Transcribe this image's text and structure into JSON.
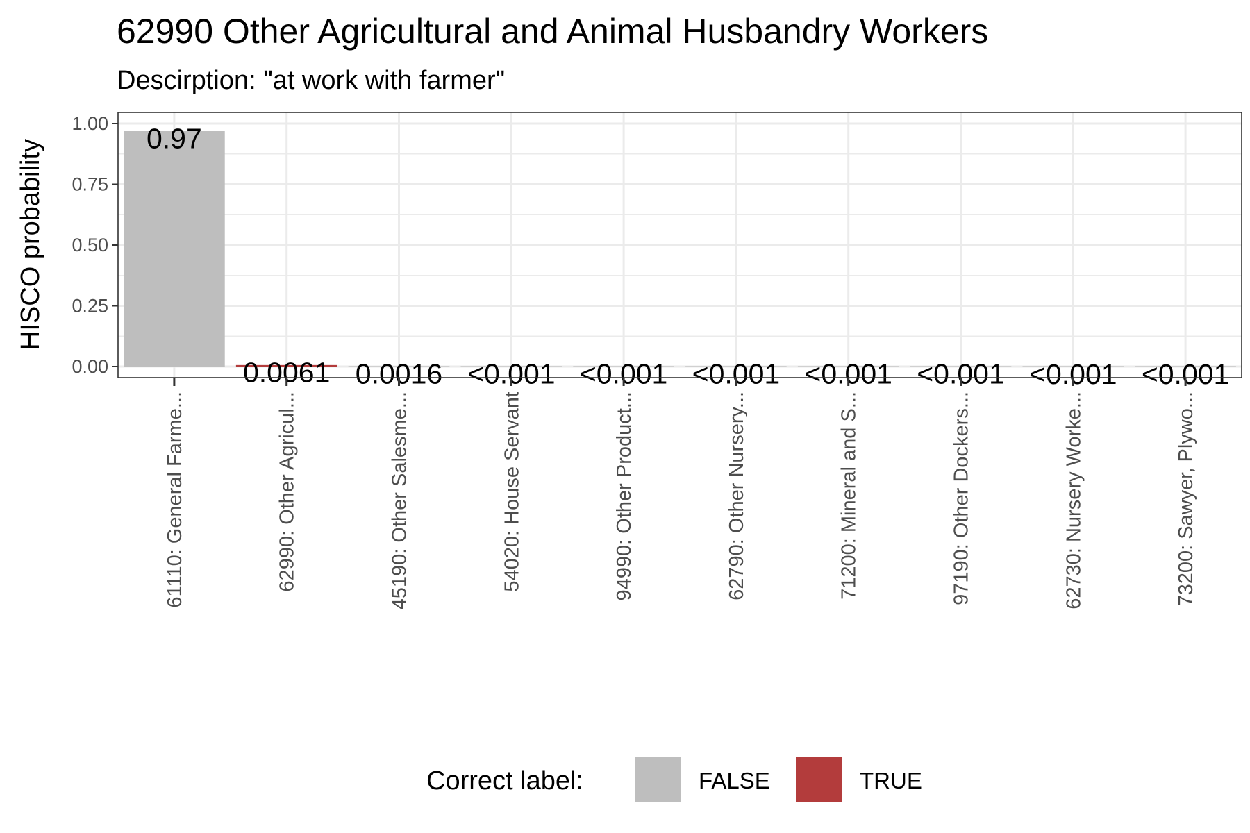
{
  "chart_data": {
    "type": "bar",
    "title": "62990 Other Agricultural and Animal Husbandry Workers",
    "subtitle": "Descirption: \"at work with farmer\"",
    "xlabel": "",
    "ylabel": "HISCO probability",
    "ylim": [
      0,
      1.05
    ],
    "yticks": [
      "0.00",
      "0.25",
      "0.50",
      "0.75",
      "1.00"
    ],
    "categories": [
      "61110: General Farme...",
      "62990: Other Agricul...",
      "45190: Other Salesme...",
      "54020: House Servant",
      "94990: Other Product...",
      "62790: Other Nursery...",
      "71200: Mineral and S...",
      "97190: Other Dockers...",
      "62730: Nursery Worke...",
      "73200: Sawyer, Plywo..."
    ],
    "values": [
      0.97,
      0.0061,
      0.0016,
      0.0008,
      0.0006,
      0.0005,
      0.0004,
      0.0003,
      0.0002,
      0.0002
    ],
    "value_labels": [
      "0.97",
      "0.0061",
      "0.0016",
      "<0.001",
      "<0.001",
      "<0.001",
      "<0.001",
      "<0.001",
      "<0.001",
      "<0.001"
    ],
    "correct": [
      false,
      true,
      false,
      false,
      false,
      false,
      false,
      false,
      false,
      false
    ],
    "grid": true,
    "legend": {
      "title": "Correct label:",
      "placement": "bottom",
      "items": [
        {
          "label": "FALSE",
          "color": "#bebebe"
        },
        {
          "label": "TRUE",
          "color": "#b33c3c"
        }
      ]
    }
  }
}
